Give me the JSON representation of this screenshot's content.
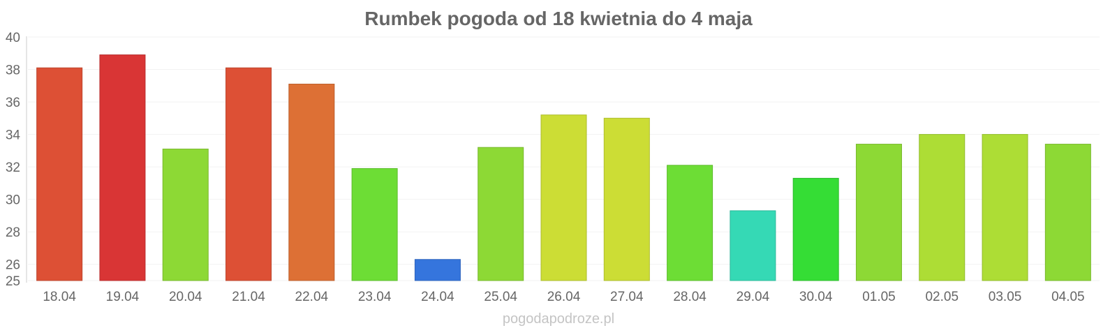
{
  "chart_data": {
    "type": "bar",
    "title": "Rumbek pogoda od 18 kwietnia do 4 maja",
    "xlabel": "",
    "ylabel": "",
    "categories": [
      "18.04",
      "19.04",
      "20.04",
      "21.04",
      "22.04",
      "23.04",
      "24.04",
      "25.04",
      "26.04",
      "27.04",
      "28.04",
      "29.04",
      "30.04",
      "01.05",
      "02.05",
      "03.05",
      "04.05"
    ],
    "values": [
      38.1,
      38.9,
      33.1,
      38.1,
      37.1,
      31.9,
      26.3,
      33.2,
      35.2,
      35.0,
      32.1,
      29.3,
      31.3,
      33.4,
      34.0,
      34.0,
      33.4
    ],
    "bar_colors": [
      "#dd5035",
      "#d93535",
      "#8dd935",
      "#dd5035",
      "#dd7035",
      "#6ddd35",
      "#3575dd",
      "#8dd935",
      "#ccdd35",
      "#ccdd35",
      "#6ddd35",
      "#35d9b5",
      "#35dd35",
      "#8dd935",
      "#addd35",
      "#addd35",
      "#8dd935"
    ],
    "ylim": [
      25,
      40
    ],
    "y_ticks": [
      "25",
      "26",
      "28",
      "30",
      "32",
      "34",
      "36",
      "38",
      "40"
    ],
    "grid": true,
    "legend": "none",
    "watermark": "pogodapodroze.pl"
  }
}
